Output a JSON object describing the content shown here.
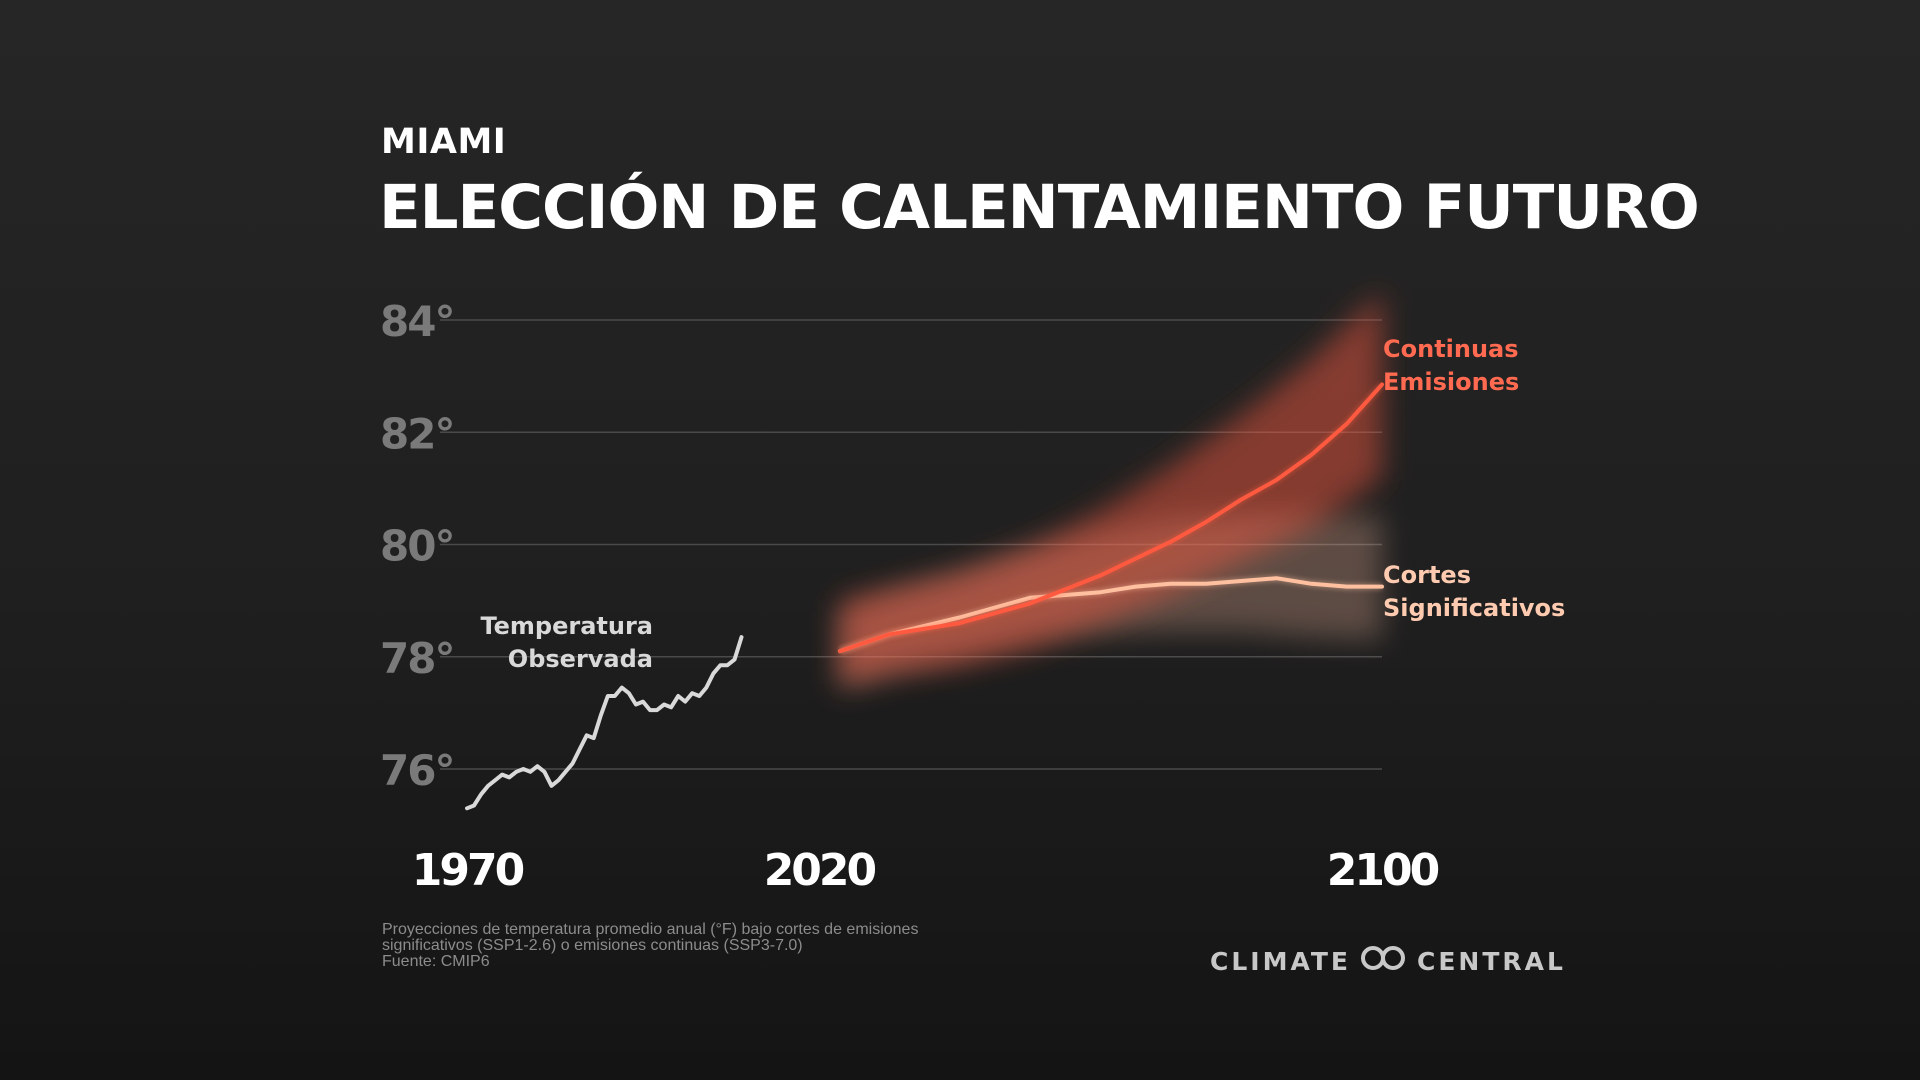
{
  "header": {
    "city": "MIAMI",
    "title": "ELECCIÓN DE CALENTAMIENTO FUTURO"
  },
  "footnote": {
    "line1": "Proyecciones de temperatura promedio anual (°F) bajo cortes de emisiones",
    "line2": "significativos (SSP1-2.6) o emisiones continuas (SSP3-7.0)",
    "line3": "Fuente: CMIP6"
  },
  "logo": {
    "left": "CLIMATE",
    "right": "CENTRAL",
    "icon": "infinity-loop-icon"
  },
  "colors": {
    "background": "#1f1f1f",
    "observed": "#d9d9d9",
    "continued": "#ff5a40",
    "cuts": "#ffc0a0",
    "continued_label": "#ff6a50",
    "cuts_label": "#ffcbb0",
    "tick_label": "#7a7a7a",
    "grid": "#4a4a4a"
  },
  "chart_data": {
    "type": "line",
    "ylim": [
      75.2,
      84.5
    ],
    "xlim": [
      1970,
      2100
    ],
    "y_ticks": [
      76,
      78,
      80,
      82,
      84
    ],
    "y_tick_labels": [
      "76°",
      "78°",
      "80°",
      "82°",
      "84°"
    ],
    "x_ticks": [
      1970,
      2020,
      2100
    ],
    "x_tick_labels": [
      "1970",
      "2020",
      "2100"
    ],
    "grid": true,
    "series": [
      {
        "key": "observed",
        "label_lines": [
          "Temperatura",
          "Observada"
        ],
        "points": [
          [
            1970,
            75.3
          ],
          [
            1971,
            75.35
          ],
          [
            1972,
            75.55
          ],
          [
            1973,
            75.7
          ],
          [
            1974,
            75.8
          ],
          [
            1975,
            75.9
          ],
          [
            1976,
            75.85
          ],
          [
            1977,
            75.95
          ],
          [
            1978,
            76.0
          ],
          [
            1979,
            75.95
          ],
          [
            1980,
            76.05
          ],
          [
            1981,
            75.95
          ],
          [
            1982,
            75.7
          ],
          [
            1983,
            75.8
          ],
          [
            1984,
            75.95
          ],
          [
            1985,
            76.1
          ],
          [
            1986,
            76.35
          ],
          [
            1987,
            76.6
          ],
          [
            1988,
            76.55
          ],
          [
            1989,
            76.95
          ],
          [
            1990,
            77.3
          ],
          [
            1991,
            77.3
          ],
          [
            1992,
            77.45
          ],
          [
            1993,
            77.35
          ],
          [
            1994,
            77.15
          ],
          [
            1995,
            77.2
          ],
          [
            1996,
            77.05
          ],
          [
            1997,
            77.05
          ],
          [
            1998,
            77.15
          ],
          [
            1999,
            77.1
          ],
          [
            2000,
            77.3
          ],
          [
            2001,
            77.2
          ],
          [
            2002,
            77.35
          ],
          [
            2003,
            77.3
          ],
          [
            2004,
            77.45
          ],
          [
            2005,
            77.7
          ],
          [
            2006,
            77.85
          ],
          [
            2007,
            77.85
          ],
          [
            2008,
            77.95
          ],
          [
            2009,
            78.35
          ]
        ]
      },
      {
        "key": "continued",
        "label_lines": [
          "Continuas",
          "Emisiones"
        ],
        "points": [
          [
            2023,
            78.1
          ],
          [
            2030,
            78.4
          ],
          [
            2040,
            78.6
          ],
          [
            2050,
            78.95
          ],
          [
            2060,
            79.45
          ],
          [
            2070,
            80.05
          ],
          [
            2075,
            80.4
          ],
          [
            2080,
            80.8
          ],
          [
            2085,
            81.15
          ],
          [
            2090,
            81.6
          ],
          [
            2095,
            82.15
          ],
          [
            2100,
            82.85
          ]
        ],
        "band_lower": [
          [
            2023,
            77.5
          ],
          [
            2030,
            77.7
          ],
          [
            2040,
            77.85
          ],
          [
            2050,
            78.15
          ],
          [
            2060,
            78.6
          ],
          [
            2070,
            79.1
          ],
          [
            2080,
            79.7
          ],
          [
            2090,
            80.3
          ],
          [
            2100,
            81.2
          ]
        ],
        "band_upper": [
          [
            2023,
            79.0
          ],
          [
            2030,
            79.2
          ],
          [
            2040,
            79.5
          ],
          [
            2050,
            79.95
          ],
          [
            2060,
            80.6
          ],
          [
            2070,
            81.4
          ],
          [
            2080,
            82.3
          ],
          [
            2090,
            83.3
          ],
          [
            2100,
            84.5
          ]
        ]
      },
      {
        "key": "cuts",
        "label_lines": [
          "Cortes",
          "Significativos"
        ],
        "points": [
          [
            2023,
            78.1
          ],
          [
            2030,
            78.4
          ],
          [
            2040,
            78.7
          ],
          [
            2050,
            79.05
          ],
          [
            2055,
            79.1
          ],
          [
            2060,
            79.15
          ],
          [
            2065,
            79.25
          ],
          [
            2070,
            79.3
          ],
          [
            2075,
            79.3
          ],
          [
            2080,
            79.35
          ],
          [
            2085,
            79.4
          ],
          [
            2090,
            79.3
          ],
          [
            2095,
            79.25
          ],
          [
            2100,
            79.25
          ]
        ],
        "band_lower": [
          [
            2023,
            77.4
          ],
          [
            2030,
            77.7
          ],
          [
            2040,
            78.0
          ],
          [
            2050,
            78.3
          ],
          [
            2060,
            78.4
          ],
          [
            2070,
            78.45
          ],
          [
            2080,
            78.45
          ],
          [
            2090,
            78.35
          ],
          [
            2100,
            78.3
          ]
        ],
        "band_upper": [
          [
            2023,
            78.8
          ],
          [
            2030,
            79.15
          ],
          [
            2040,
            79.5
          ],
          [
            2050,
            79.9
          ],
          [
            2060,
            80.2
          ],
          [
            2070,
            80.45
          ],
          [
            2080,
            80.55
          ],
          [
            2090,
            80.55
          ],
          [
            2100,
            80.5
          ]
        ]
      }
    ]
  }
}
